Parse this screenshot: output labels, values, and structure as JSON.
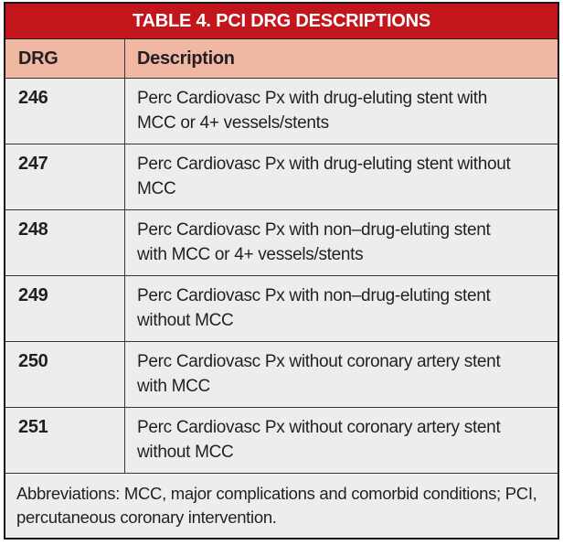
{
  "table": {
    "title": "TABLE 4. PCI DRG DESCRIPTIONS",
    "columns": {
      "drg": "DRG",
      "description": "Description"
    },
    "rows": [
      {
        "drg": "246",
        "desc_line1": "Perc Cardiovasc Px with drug-eluting stent with",
        "desc_line2": "MCC or 4+ vessels/stents"
      },
      {
        "drg": "247",
        "desc_line1": "Perc Cardiovasc Px with drug-eluting stent without",
        "desc_line2": "MCC"
      },
      {
        "drg": "248",
        "desc_line1": "Perc Cardiovasc Px with non–drug-eluting stent",
        "desc_line2": "with MCC or 4+ vessels/stents"
      },
      {
        "drg": "249",
        "desc_line1": "Perc Cardiovasc Px with non–drug-eluting stent",
        "desc_line2": "without MCC"
      },
      {
        "drg": "250",
        "desc_line1": "Perc Cardiovasc Px without coronary artery stent",
        "desc_line2": "with MCC"
      },
      {
        "drg": "251",
        "desc_line1": "Perc Cardiovasc Px without coronary artery stent",
        "desc_line2": "without MCC"
      }
    ],
    "footnote": {
      "line1": "Abbreviations: MCC, major complications and comorbid conditions; PCI,",
      "line2": "percutaneous coronary intervention."
    },
    "colors": {
      "title_bar_red": "#C3161C",
      "title_text_white": "#FFFFFF",
      "header_row_pink": "#F0B7A2",
      "row_background_gray": "#EDEEEB",
      "text_dark": "#231F20",
      "border_dark": "#1B1718"
    }
  }
}
